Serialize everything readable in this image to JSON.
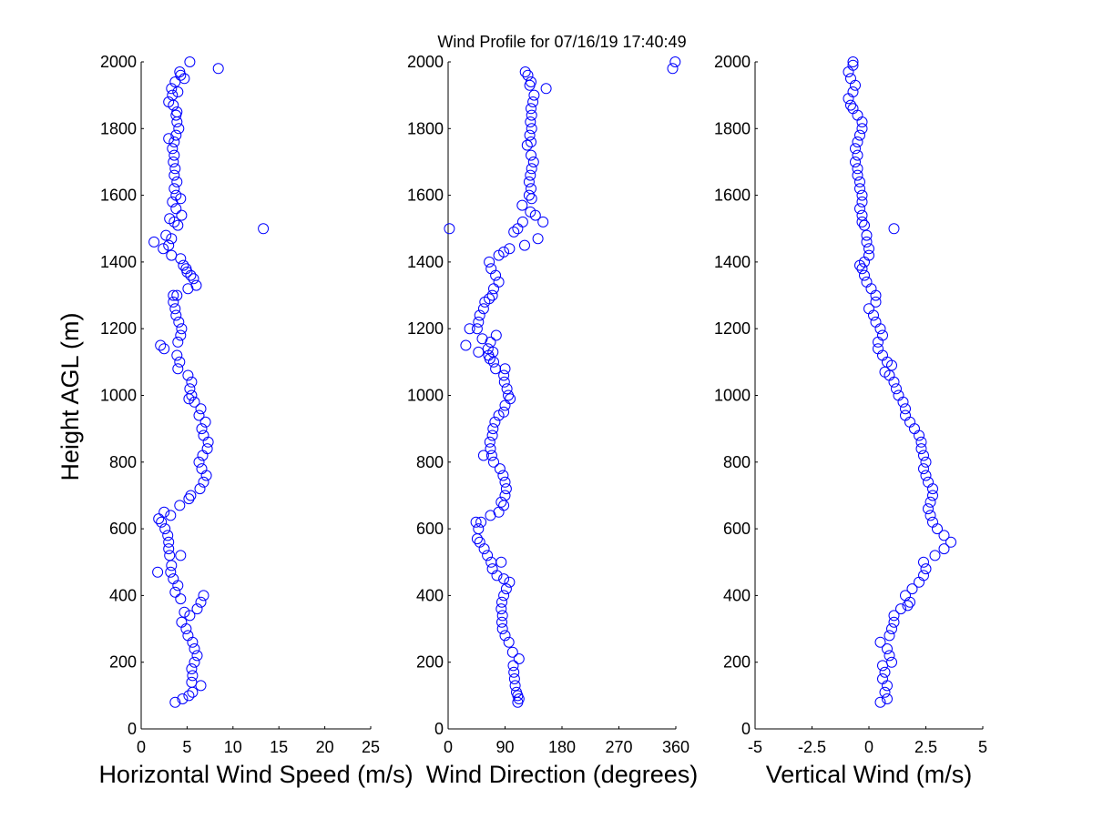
{
  "title": "Wind Profile for  07/16/19 17:40:49",
  "marker_color": "#0000ff",
  "shared_ylabel": "Height AGL (m)",
  "chart_data": [
    {
      "type": "scatter",
      "xlabel": "Horizontal Wind Speed (m/s)",
      "ylabel": "Height AGL (m)",
      "xlim": [
        0,
        25
      ],
      "ylim": [
        0,
        2000
      ],
      "xticks": [
        0,
        5,
        10,
        15,
        20,
        25
      ],
      "xtick_labels": [
        "0",
        "5",
        "10",
        "15",
        "20",
        "25"
      ],
      "yticks": [
        0,
        200,
        400,
        600,
        800,
        1000,
        1200,
        1400,
        1600,
        1800,
        2000
      ],
      "ytick_labels": [
        "0",
        "200",
        "400",
        "600",
        "800",
        "1000",
        "1200",
        "1400",
        "1600",
        "1800",
        "2000"
      ],
      "grid": false,
      "marker": "open-circle",
      "points": [
        [
          3.7,
          80
        ],
        [
          4.5,
          90
        ],
        [
          5.2,
          100
        ],
        [
          5.6,
          110
        ],
        [
          6.5,
          130
        ],
        [
          5.5,
          140
        ],
        [
          5.6,
          160
        ],
        [
          5.5,
          180
        ],
        [
          5.8,
          200
        ],
        [
          6.1,
          220
        ],
        [
          5.8,
          240
        ],
        [
          5.6,
          260
        ],
        [
          5.1,
          280
        ],
        [
          4.9,
          300
        ],
        [
          4.4,
          320
        ],
        [
          5.3,
          340
        ],
        [
          4.7,
          350
        ],
        [
          6.1,
          360
        ],
        [
          6.5,
          380
        ],
        [
          6.8,
          400
        ],
        [
          4.3,
          390
        ],
        [
          3.7,
          410
        ],
        [
          4.0,
          430
        ],
        [
          3.5,
          450
        ],
        [
          3.2,
          470
        ],
        [
          1.8,
          470
        ],
        [
          3.3,
          490
        ],
        [
          4.3,
          520
        ],
        [
          3.1,
          520
        ],
        [
          3.0,
          540
        ],
        [
          3.0,
          560
        ],
        [
          2.9,
          580
        ],
        [
          2.6,
          600
        ],
        [
          2.2,
          620
        ],
        [
          1.9,
          630
        ],
        [
          3.2,
          640
        ],
        [
          2.5,
          650
        ],
        [
          4.2,
          670
        ],
        [
          5.2,
          690
        ],
        [
          5.4,
          700
        ],
        [
          6.4,
          720
        ],
        [
          6.8,
          740
        ],
        [
          7.1,
          760
        ],
        [
          6.6,
          780
        ],
        [
          6.3,
          800
        ],
        [
          6.7,
          820
        ],
        [
          7.2,
          840
        ],
        [
          7.3,
          860
        ],
        [
          6.8,
          880
        ],
        [
          6.6,
          900
        ],
        [
          7.0,
          920
        ],
        [
          6.3,
          940
        ],
        [
          6.5,
          960
        ],
        [
          5.8,
          980
        ],
        [
          5.2,
          990
        ],
        [
          5.5,
          1000
        ],
        [
          5.3,
          1020
        ],
        [
          5.5,
          1040
        ],
        [
          5.1,
          1060
        ],
        [
          4.0,
          1080
        ],
        [
          4.2,
          1100
        ],
        [
          3.9,
          1120
        ],
        [
          2.5,
          1140
        ],
        [
          2.1,
          1150
        ],
        [
          4.0,
          1160
        ],
        [
          4.3,
          1180
        ],
        [
          4.4,
          1200
        ],
        [
          4.1,
          1220
        ],
        [
          3.8,
          1240
        ],
        [
          3.7,
          1260
        ],
        [
          3.5,
          1280
        ],
        [
          3.5,
          1300
        ],
        [
          3.9,
          1300
        ],
        [
          5.1,
          1320
        ],
        [
          6.0,
          1330
        ],
        [
          5.7,
          1350
        ],
        [
          5.4,
          1360
        ],
        [
          5.0,
          1370
        ],
        [
          4.9,
          1380
        ],
        [
          4.6,
          1390
        ],
        [
          4.3,
          1410
        ],
        [
          3.3,
          1420
        ],
        [
          2.4,
          1440
        ],
        [
          3.0,
          1450
        ],
        [
          3.3,
          1470
        ],
        [
          1.4,
          1460
        ],
        [
          2.7,
          1480
        ],
        [
          13.3,
          1500
        ],
        [
          4.0,
          1510
        ],
        [
          3.6,
          1520
        ],
        [
          3.1,
          1530
        ],
        [
          4.4,
          1540
        ],
        [
          3.8,
          1560
        ],
        [
          3.4,
          1580
        ],
        [
          4.3,
          1590
        ],
        [
          3.8,
          1600
        ],
        [
          3.6,
          1620
        ],
        [
          3.9,
          1640
        ],
        [
          3.6,
          1660
        ],
        [
          3.7,
          1680
        ],
        [
          3.5,
          1700
        ],
        [
          3.6,
          1720
        ],
        [
          3.4,
          1740
        ],
        [
          3.6,
          1760
        ],
        [
          3.0,
          1770
        ],
        [
          3.8,
          1780
        ],
        [
          4.1,
          1800
        ],
        [
          3.9,
          1820
        ],
        [
          3.8,
          1840
        ],
        [
          3.9,
          1850
        ],
        [
          3.5,
          1870
        ],
        [
          3.0,
          1880
        ],
        [
          3.4,
          1900
        ],
        [
          4.0,
          1910
        ],
        [
          3.3,
          1920
        ],
        [
          3.7,
          1940
        ],
        [
          4.7,
          1950
        ],
        [
          4.3,
          1960
        ],
        [
          4.2,
          1970
        ],
        [
          8.4,
          1980
        ],
        [
          5.3,
          2000
        ]
      ]
    },
    {
      "type": "scatter",
      "xlabel": "Wind Direction (degrees)",
      "ylabel": "",
      "xlim": [
        0,
        360
      ],
      "ylim": [
        0,
        2000
      ],
      "xticks": [
        0,
        90,
        180,
        270,
        360
      ],
      "xtick_labels": [
        "0",
        "90",
        "180",
        "270",
        "360"
      ],
      "yticks": [
        0,
        200,
        400,
        600,
        800,
        1000,
        1200,
        1400,
        1600,
        1800,
        2000
      ],
      "ytick_labels": [
        "0",
        "200",
        "400",
        "600",
        "800",
        "1000",
        "1200",
        "1400",
        "1600",
        "1800",
        "2000"
      ],
      "grid": false,
      "marker": "open-circle",
      "points": [
        [
          110,
          80
        ],
        [
          112,
          90
        ],
        [
          110,
          100
        ],
        [
          108,
          110
        ],
        [
          106,
          130
        ],
        [
          105,
          150
        ],
        [
          104,
          170
        ],
        [
          103,
          190
        ],
        [
          112,
          210
        ],
        [
          102,
          230
        ],
        [
          96,
          260
        ],
        [
          90,
          280
        ],
        [
          86,
          300
        ],
        [
          85,
          320
        ],
        [
          86,
          340
        ],
        [
          84,
          360
        ],
        [
          85,
          380
        ],
        [
          88,
          400
        ],
        [
          92,
          420
        ],
        [
          97,
          440
        ],
        [
          88,
          450
        ],
        [
          77,
          460
        ],
        [
          70,
          480
        ],
        [
          68,
          500
        ],
        [
          84,
          500
        ],
        [
          62,
          520
        ],
        [
          57,
          540
        ],
        [
          50,
          560
        ],
        [
          46,
          570
        ],
        [
          48,
          600
        ],
        [
          44,
          620
        ],
        [
          52,
          620
        ],
        [
          67,
          640
        ],
        [
          80,
          650
        ],
        [
          88,
          670
        ],
        [
          84,
          680
        ],
        [
          90,
          700
        ],
        [
          92,
          720
        ],
        [
          90,
          740
        ],
        [
          87,
          760
        ],
        [
          82,
          780
        ],
        [
          72,
          800
        ],
        [
          69,
          820
        ],
        [
          56,
          820
        ],
        [
          67,
          840
        ],
        [
          66,
          860
        ],
        [
          70,
          880
        ],
        [
          71,
          900
        ],
        [
          74,
          920
        ],
        [
          80,
          940
        ],
        [
          88,
          950
        ],
        [
          90,
          970
        ],
        [
          98,
          990
        ],
        [
          95,
          1000
        ],
        [
          93,
          1020
        ],
        [
          89,
          1040
        ],
        [
          88,
          1060
        ],
        [
          90,
          1080
        ],
        [
          75,
          1080
        ],
        [
          72,
          1100
        ],
        [
          66,
          1110
        ],
        [
          64,
          1120
        ],
        [
          71,
          1130
        ],
        [
          48,
          1130
        ],
        [
          63,
          1140
        ],
        [
          28,
          1150
        ],
        [
          67,
          1160
        ],
        [
          54,
          1170
        ],
        [
          76,
          1180
        ],
        [
          34,
          1200
        ],
        [
          46,
          1200
        ],
        [
          48,
          1220
        ],
        [
          50,
          1240
        ],
        [
          56,
          1260
        ],
        [
          58,
          1280
        ],
        [
          65,
          1290
        ],
        [
          70,
          1300
        ],
        [
          72,
          1320
        ],
        [
          80,
          1340
        ],
        [
          75,
          1360
        ],
        [
          68,
          1380
        ],
        [
          65,
          1400
        ],
        [
          80,
          1420
        ],
        [
          88,
          1430
        ],
        [
          97,
          1440
        ],
        [
          121,
          1450
        ],
        [
          142,
          1470
        ],
        [
          104,
          1490
        ],
        [
          2,
          1500
        ],
        [
          110,
          1500
        ],
        [
          118,
          1520
        ],
        [
          150,
          1520
        ],
        [
          138,
          1540
        ],
        [
          130,
          1550
        ],
        [
          117,
          1570
        ],
        [
          132,
          1590
        ],
        [
          128,
          1600
        ],
        [
          131,
          1620
        ],
        [
          128,
          1640
        ],
        [
          130,
          1660
        ],
        [
          132,
          1680
        ],
        [
          135,
          1700
        ],
        [
          131,
          1720
        ],
        [
          125,
          1750
        ],
        [
          131,
          1760
        ],
        [
          129,
          1780
        ],
        [
          132,
          1800
        ],
        [
          130,
          1820
        ],
        [
          132,
          1840
        ],
        [
          131,
          1860
        ],
        [
          134,
          1880
        ],
        [
          136,
          1900
        ],
        [
          155,
          1920
        ],
        [
          129,
          1930
        ],
        [
          131,
          1940
        ],
        [
          126,
          1960
        ],
        [
          122,
          1970
        ],
        [
          355,
          1980
        ],
        [
          359,
          2000
        ]
      ]
    },
    {
      "type": "scatter",
      "xlabel": "Vertical Wind (m/s)",
      "ylabel": "",
      "xlim": [
        -5,
        5
      ],
      "ylim": [
        0,
        2000
      ],
      "xticks": [
        -5,
        -2.5,
        0,
        2.5,
        5
      ],
      "xtick_labels": [
        "-5",
        "-2.5",
        "0",
        "2.5",
        "5"
      ],
      "yticks": [
        0,
        200,
        400,
        600,
        800,
        1000,
        1200,
        1400,
        1600,
        1800,
        2000
      ],
      "ytick_labels": [
        "0",
        "200",
        "400",
        "600",
        "800",
        "1000",
        "1200",
        "1400",
        "1600",
        "1800",
        "2000"
      ],
      "grid": false,
      "marker": "open-circle",
      "points": [
        [
          0.5,
          80
        ],
        [
          0.8,
          90
        ],
        [
          0.7,
          110
        ],
        [
          0.8,
          130
        ],
        [
          0.6,
          150
        ],
        [
          0.7,
          170
        ],
        [
          0.6,
          190
        ],
        [
          1.0,
          200
        ],
        [
          0.9,
          220
        ],
        [
          0.8,
          240
        ],
        [
          0.5,
          260
        ],
        [
          0.9,
          280
        ],
        [
          1.0,
          300
        ],
        [
          1.1,
          320
        ],
        [
          1.1,
          340
        ],
        [
          1.4,
          360
        ],
        [
          1.7,
          370
        ],
        [
          1.8,
          380
        ],
        [
          1.6,
          400
        ],
        [
          1.9,
          420
        ],
        [
          2.2,
          440
        ],
        [
          2.4,
          460
        ],
        [
          2.5,
          480
        ],
        [
          2.4,
          500
        ],
        [
          2.9,
          520
        ],
        [
          3.3,
          540
        ],
        [
          3.6,
          560
        ],
        [
          3.3,
          580
        ],
        [
          3.0,
          600
        ],
        [
          2.8,
          620
        ],
        [
          2.7,
          640
        ],
        [
          2.6,
          660
        ],
        [
          2.7,
          680
        ],
        [
          2.8,
          700
        ],
        [
          2.8,
          720
        ],
        [
          2.6,
          740
        ],
        [
          2.5,
          760
        ],
        [
          2.4,
          780
        ],
        [
          2.5,
          800
        ],
        [
          2.4,
          820
        ],
        [
          2.3,
          840
        ],
        [
          2.3,
          860
        ],
        [
          2.2,
          880
        ],
        [
          2.0,
          900
        ],
        [
          1.8,
          920
        ],
        [
          1.6,
          940
        ],
        [
          1.6,
          960
        ],
        [
          1.5,
          980
        ],
        [
          1.3,
          1000
        ],
        [
          1.2,
          1020
        ],
        [
          1.1,
          1040
        ],
        [
          0.9,
          1060
        ],
        [
          0.7,
          1070
        ],
        [
          1.0,
          1090
        ],
        [
          0.8,
          1100
        ],
        [
          0.6,
          1120
        ],
        [
          0.4,
          1140
        ],
        [
          0.4,
          1160
        ],
        [
          0.6,
          1180
        ],
        [
          0.5,
          1200
        ],
        [
          0.3,
          1220
        ],
        [
          0.2,
          1240
        ],
        [
          0.0,
          1260
        ],
        [
          0.3,
          1280
        ],
        [
          0.3,
          1300
        ],
        [
          0.1,
          1320
        ],
        [
          -0.1,
          1340
        ],
        [
          -0.2,
          1360
        ],
        [
          -0.3,
          1380
        ],
        [
          -0.4,
          1390
        ],
        [
          -0.2,
          1400
        ],
        [
          0.0,
          1420
        ],
        [
          0.0,
          1440
        ],
        [
          -0.1,
          1460
        ],
        [
          -0.1,
          1480
        ],
        [
          1.1,
          1500
        ],
        [
          -0.2,
          1510
        ],
        [
          -0.3,
          1520
        ],
        [
          -0.3,
          1540
        ],
        [
          -0.4,
          1560
        ],
        [
          -0.3,
          1580
        ],
        [
          -0.3,
          1600
        ],
        [
          -0.4,
          1620
        ],
        [
          -0.4,
          1640
        ],
        [
          -0.5,
          1660
        ],
        [
          -0.5,
          1680
        ],
        [
          -0.6,
          1700
        ],
        [
          -0.5,
          1720
        ],
        [
          -0.6,
          1740
        ],
        [
          -0.5,
          1760
        ],
        [
          -0.4,
          1780
        ],
        [
          -0.3,
          1800
        ],
        [
          -0.3,
          1820
        ],
        [
          -0.5,
          1840
        ],
        [
          -0.7,
          1860
        ],
        [
          -0.8,
          1870
        ],
        [
          -0.9,
          1890
        ],
        [
          -0.7,
          1910
        ],
        [
          -0.6,
          1930
        ],
        [
          -0.8,
          1950
        ],
        [
          -0.9,
          1970
        ],
        [
          -0.7,
          1990
        ],
        [
          -0.7,
          2000
        ]
      ]
    }
  ]
}
